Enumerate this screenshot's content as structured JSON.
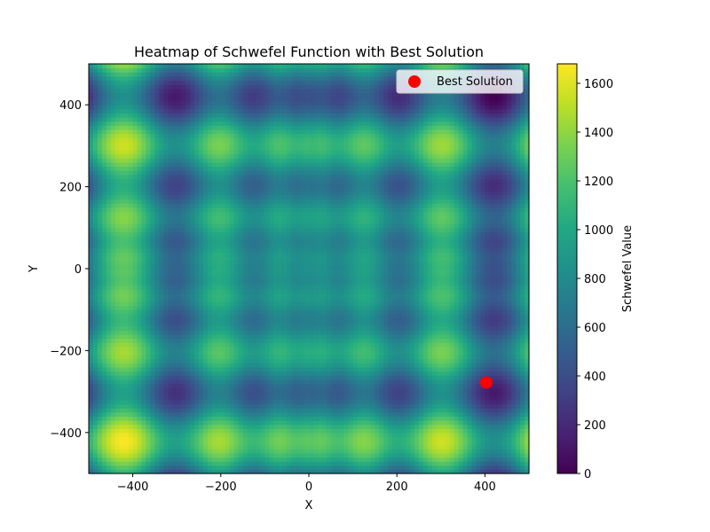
{
  "chart_data": {
    "type": "heatmap",
    "title": "Heatmap of Schwefel Function with Best Solution",
    "xlabel": "X",
    "ylabel": "Y",
    "xlim": [
      -500,
      500
    ],
    "ylim": [
      -500,
      500
    ],
    "x_ticks": [
      -400,
      -200,
      0,
      200,
      400
    ],
    "y_ticks": [
      -400,
      -200,
      0,
      200,
      400
    ],
    "x_tick_labels": [
      "−400",
      "−200",
      "0",
      "200",
      "400"
    ],
    "y_tick_labels": [
      "−400",
      "−200",
      "0",
      "200",
      "400"
    ],
    "function": "schwefel-2d",
    "colormap": "viridis",
    "colorbar": {
      "label": "Schwefel Value",
      "range": [
        0,
        1680
      ],
      "ticks": [
        0,
        200,
        400,
        600,
        800,
        1000,
        1200,
        1400,
        1600
      ],
      "tick_labels": [
        "0",
        "200",
        "400",
        "600",
        "800",
        "1000",
        "1200",
        "1400",
        "1600"
      ]
    },
    "series": [
      {
        "name": "Best Solution",
        "type": "scatter",
        "points": [
          {
            "x": 403,
            "y": -278
          }
        ],
        "color": "#ff0000"
      }
    ],
    "legend": {
      "position": "top-right",
      "entries": [
        "Best Solution"
      ]
    },
    "grid": false
  }
}
